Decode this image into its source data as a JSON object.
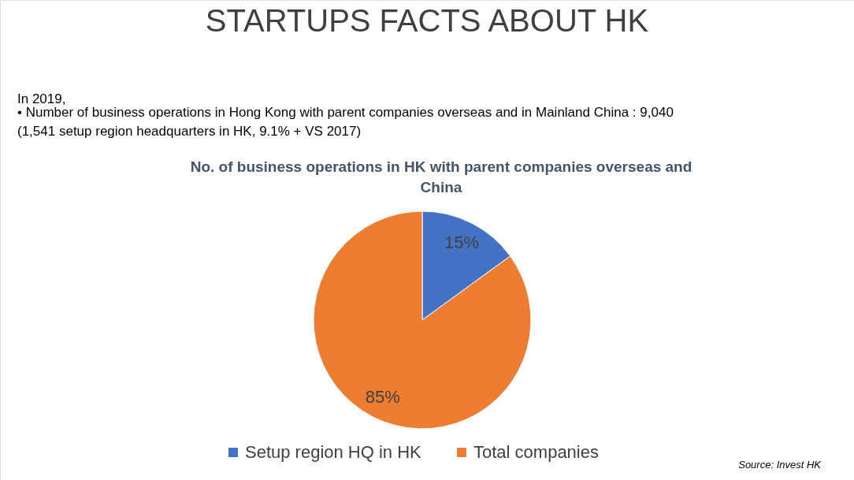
{
  "chart_data": {
    "type": "pie",
    "title": "STARTUPS FACTS ABOUT HK",
    "subtitle": "No. of business operations in HK with parent companies overseas and China",
    "annotations": [
      "In 2019,",
      "•   Number of business operations in Hong Kong with parent companies overseas and in Mainland China : 9,040",
      "(1,541 setup region headquarters in HK, 9.1% + VS 2017)",
      "Source: Invest HK"
    ],
    "categories": [
      "Setup region HQ in HK",
      "Total companies"
    ],
    "values": [
      15,
      85
    ],
    "colors": [
      "#4472c4",
      "#ed7d31"
    ],
    "value_labels": [
      "15%",
      "85%"
    ],
    "legend": "bottom"
  }
}
